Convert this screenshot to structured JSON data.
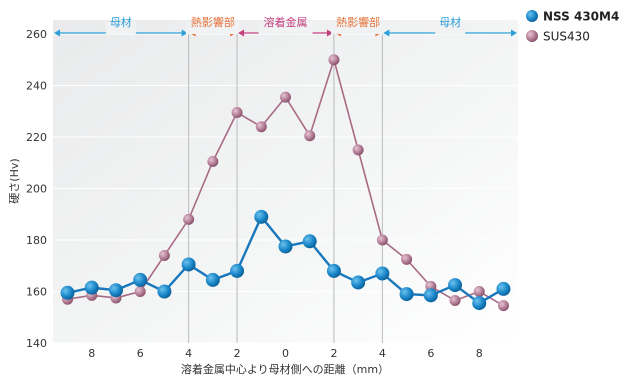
{
  "chart_data": {
    "type": "line",
    "xlabel": "溶着金属中心より母材側への距離（mm）",
    "ylabel": "硬さ(Hv)",
    "ylim": [
      140,
      260
    ],
    "yticks": [
      140,
      160,
      180,
      200,
      220,
      240,
      260
    ],
    "xlim": [
      -9.6,
      9.6
    ],
    "xticks": [
      -8,
      -6,
      -4,
      -2,
      0,
      2,
      4,
      6,
      8
    ],
    "xtick_labels": [
      "8",
      "6",
      "4",
      "2",
      "0",
      "2",
      "4",
      "6",
      "8"
    ],
    "grid": "vertical-at-zone-boundaries",
    "legend_position": "top-right",
    "zones": [
      {
        "label": "母材",
        "from": -9.6,
        "to": -4,
        "color": "#2c9fd8"
      },
      {
        "label": "熱影響部",
        "from": -4,
        "to": -2,
        "color": "#e8743b"
      },
      {
        "label": "溶着金属",
        "from": -2,
        "to": 2,
        "color": "#c5407f"
      },
      {
        "label": "熱影響部",
        "from": 2,
        "to": 4,
        "color": "#e8743b"
      },
      {
        "label": "母材",
        "from": 4,
        "to": 9.6,
        "color": "#2c9fd8"
      }
    ],
    "x": [
      -9,
      -8,
      -7,
      -6,
      -5,
      -4,
      -3,
      -2,
      -1,
      0,
      1,
      2,
      3,
      4,
      5,
      6,
      7,
      8,
      9
    ],
    "series": [
      {
        "name": "NSS 430M4",
        "color": "#1877bd",
        "values": [
          159.5,
          161.5,
          160.5,
          164.5,
          160,
          170.5,
          164.5,
          168,
          189,
          177.5,
          179.5,
          168,
          163.5,
          167,
          159,
          158.5,
          162.5,
          155.5,
          161
        ]
      },
      {
        "name": "SUS430",
        "color": "#a86b86",
        "values": [
          157,
          158.5,
          157.5,
          160,
          174,
          188,
          210.5,
          229.5,
          224,
          235.5,
          220.5,
          250,
          215,
          180,
          172.5,
          162,
          156.5,
          160,
          154.5
        ]
      }
    ]
  }
}
